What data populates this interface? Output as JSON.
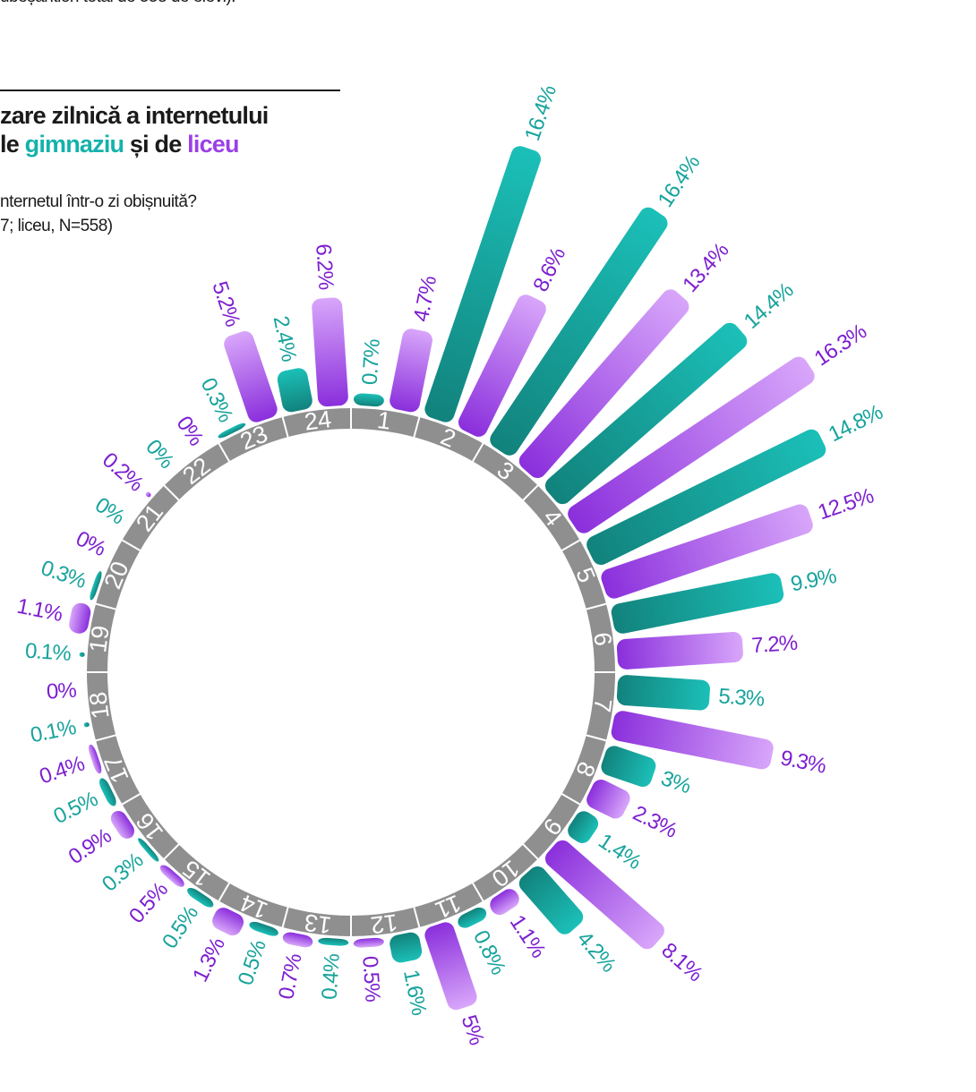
{
  "header": {
    "top_note": "ubeșantion total de 558 de elevi).",
    "title_line1": "zare zilnică a internetului",
    "title_line2_prefix": "le ",
    "title_line2_gimnaziu": "gimnaziu",
    "title_line2_middle": " și de ",
    "title_line2_liceu": "liceu",
    "question": "nternetul într-o zi obișnuită?",
    "sample": "7; liceu, N=558)"
  },
  "colors": {
    "gimnaziu": "#14b2ab",
    "liceu": "#c48af4",
    "liceu_label": "#7d1fd0",
    "gimnaziu_label": "#17a39c",
    "ring": "#8f8f8f"
  },
  "chart_data": {
    "type": "radial-bar",
    "categories": [
      "1",
      "2",
      "3",
      "4",
      "5",
      "6",
      "7",
      "8",
      "9",
      "10",
      "11",
      "12",
      "13",
      "14",
      "15",
      "16",
      "17",
      "18",
      "19",
      "20",
      "21",
      "22",
      "23",
      "24"
    ],
    "series": [
      {
        "name": "gimnaziu",
        "values": [
          0.7,
          16.4,
          16.4,
          14.4,
          14.8,
          9.9,
          5.3,
          3,
          1.4,
          4.2,
          0.8,
          1.6,
          0.4,
          0.5,
          0.5,
          0.3,
          0.5,
          0.1,
          0.1,
          0.3,
          0,
          0,
          0.3,
          2.4
        ]
      },
      {
        "name": "liceu",
        "values": [
          4.7,
          8.6,
          13.4,
          16.3,
          12.5,
          7.2,
          9.3,
          2.3,
          8.1,
          1.1,
          5,
          0.5,
          0.7,
          1.3,
          0.5,
          0.9,
          0.4,
          0,
          1.1,
          0,
          0.2,
          0,
          5.2,
          6.2
        ]
      }
    ],
    "labels": [
      {
        "text": "0.7%",
        "series": "gimnaziu"
      },
      {
        "text": "4.7%",
        "series": "liceu"
      },
      {
        "text": "16.4%",
        "series": "gimnaziu"
      },
      {
        "text": "8.6%",
        "series": "liceu"
      },
      {
        "text": "16.4%",
        "series": "gimnaziu"
      },
      {
        "text": "13.4%",
        "series": "liceu"
      },
      {
        "text": "14.4%",
        "series": "gimnaziu"
      },
      {
        "text": "16.3%",
        "series": "liceu"
      },
      {
        "text": "14.8%",
        "series": "gimnaziu"
      },
      {
        "text": "12.5%",
        "series": "liceu"
      },
      {
        "text": "9.9%",
        "series": "gimnaziu"
      },
      {
        "text": "7.2%",
        "series": "liceu"
      },
      {
        "text": "5.3%",
        "series": "gimnaziu"
      },
      {
        "text": "9.3%",
        "series": "liceu"
      },
      {
        "text": "3%",
        "series": "gimnaziu"
      },
      {
        "text": "2.3%",
        "series": "liceu"
      },
      {
        "text": "1.4%",
        "series": "gimnaziu"
      },
      {
        "text": "8.1%",
        "series": "liceu"
      },
      {
        "text": "4.2%",
        "series": "gimnaziu"
      },
      {
        "text": "1.1%",
        "series": "liceu"
      },
      {
        "text": "0.8%",
        "series": "gimnaziu"
      },
      {
        "text": "5%",
        "series": "liceu"
      },
      {
        "text": "1.6%",
        "series": "gimnaziu"
      },
      {
        "text": "0.5%",
        "series": "liceu"
      },
      {
        "text": "0.4%",
        "series": "gimnaziu"
      },
      {
        "text": "0.7%",
        "series": "liceu"
      },
      {
        "text": "0.5%",
        "series": "gimnaziu"
      },
      {
        "text": "1.3%",
        "series": "liceu"
      },
      {
        "text": "0.5%",
        "series": "gimnaziu"
      },
      {
        "text": "0.5%",
        "series": "liceu"
      },
      {
        "text": "0.3%",
        "series": "gimnaziu"
      },
      {
        "text": "0.9%",
        "series": "liceu"
      },
      {
        "text": "0.5%",
        "series": "gimnaziu"
      },
      {
        "text": "0.4%",
        "series": "liceu"
      },
      {
        "text": "0.1%",
        "series": "gimnaziu"
      },
      {
        "text": "0%",
        "series": "liceu"
      },
      {
        "text": "0.1%",
        "series": "gimnaziu"
      },
      {
        "text": "1.1%",
        "series": "liceu"
      },
      {
        "text": "0.3%",
        "series": "gimnaziu"
      },
      {
        "text": "0%",
        "series": "liceu"
      },
      {
        "text": "0%",
        "series": "gimnaziu"
      },
      {
        "text": "0.2%",
        "series": "liceu"
      },
      {
        "text": "0%",
        "series": "gimnaziu"
      },
      {
        "text": "0%",
        "series": "liceu"
      },
      {
        "text": "0.3%",
        "series": "gimnaziu"
      },
      {
        "text": "5.2%",
        "series": "liceu"
      },
      {
        "text": "2.4%",
        "series": "gimnaziu"
      },
      {
        "text": "6.2%",
        "series": "liceu"
      }
    ]
  }
}
